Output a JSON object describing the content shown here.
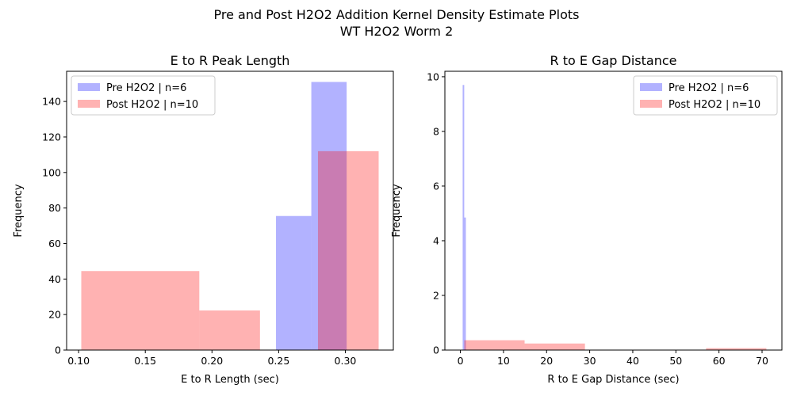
{
  "figure": {
    "suptitle_line1": "Pre and Post H2O2 Addition Kernel Density Estimate Plots",
    "suptitle_line2": "WT H2O2 Worm 2"
  },
  "colors": {
    "pre": "#0000ff",
    "post": "#ff0000",
    "alpha": 0.3
  },
  "chart_data": [
    {
      "type": "bar",
      "subtype": "histogram",
      "title": "E to R Peak Length",
      "xlabel": "E to R Length (sec)",
      "ylabel": "Frequency",
      "xlim": [
        0.091,
        0.336
      ],
      "ylim": [
        0,
        157
      ],
      "xticks": [
        0.1,
        0.15,
        0.2,
        0.25,
        0.3
      ],
      "xtick_labels": [
        "0.10",
        "0.15",
        "0.20",
        "0.25",
        "0.30"
      ],
      "yticks": [
        0,
        20,
        40,
        60,
        80,
        100,
        120,
        140
      ],
      "ytick_labels": [
        "0",
        "20",
        "40",
        "60",
        "80",
        "100",
        "120",
        "140"
      ],
      "legend_position": "upper left",
      "series": [
        {
          "name": "Pre H2O2 | n=6",
          "color_key": "pre",
          "bins": [
            {
              "x0": 0.248,
              "x1": 0.2745,
              "value": 75.5
            },
            {
              "x0": 0.2745,
              "x1": 0.301,
              "value": 151
            }
          ]
        },
        {
          "name": "Post H2O2 | n=10",
          "color_key": "post",
          "bins": [
            {
              "x0": 0.102,
              "x1": 0.1905,
              "value": 44.5
            },
            {
              "x0": 0.1905,
              "x1": 0.236,
              "value": 22.3
            },
            {
              "x0": 0.2795,
              "x1": 0.325,
              "value": 112
            }
          ]
        }
      ]
    },
    {
      "type": "bar",
      "subtype": "histogram",
      "title": "R to E Gap Distance",
      "xlabel": "R to E Gap Distance (sec)",
      "ylabel": "Frequency",
      "xlim": [
        -3.6,
        74.6
      ],
      "ylim": [
        0,
        10.2
      ],
      "xticks": [
        0,
        10,
        20,
        30,
        40,
        50,
        60,
        70
      ],
      "xtick_labels": [
        "0",
        "10",
        "20",
        "30",
        "40",
        "50",
        "60",
        "70"
      ],
      "yticks": [
        0,
        2,
        4,
        6,
        8,
        10
      ],
      "ytick_labels": [
        "0",
        "2",
        "4",
        "6",
        "8",
        "10"
      ],
      "legend_position": "upper right",
      "series": [
        {
          "name": "Pre H2O2 | n=6",
          "color_key": "pre",
          "bins": [
            {
              "x0": 0.53,
              "x1": 0.89,
              "value": 9.7
            },
            {
              "x0": 0.89,
              "x1": 1.27,
              "value": 4.85
            }
          ]
        },
        {
          "name": "Post H2O2 | n=10",
          "color_key": "post",
          "bins": [
            {
              "x0": 0.9,
              "x1": 14.9,
              "value": 0.36
            },
            {
              "x0": 14.9,
              "x1": 28.9,
              "value": 0.24
            },
            {
              "x0": 57.0,
              "x1": 71.0,
              "value": 0.07
            }
          ]
        }
      ]
    }
  ]
}
